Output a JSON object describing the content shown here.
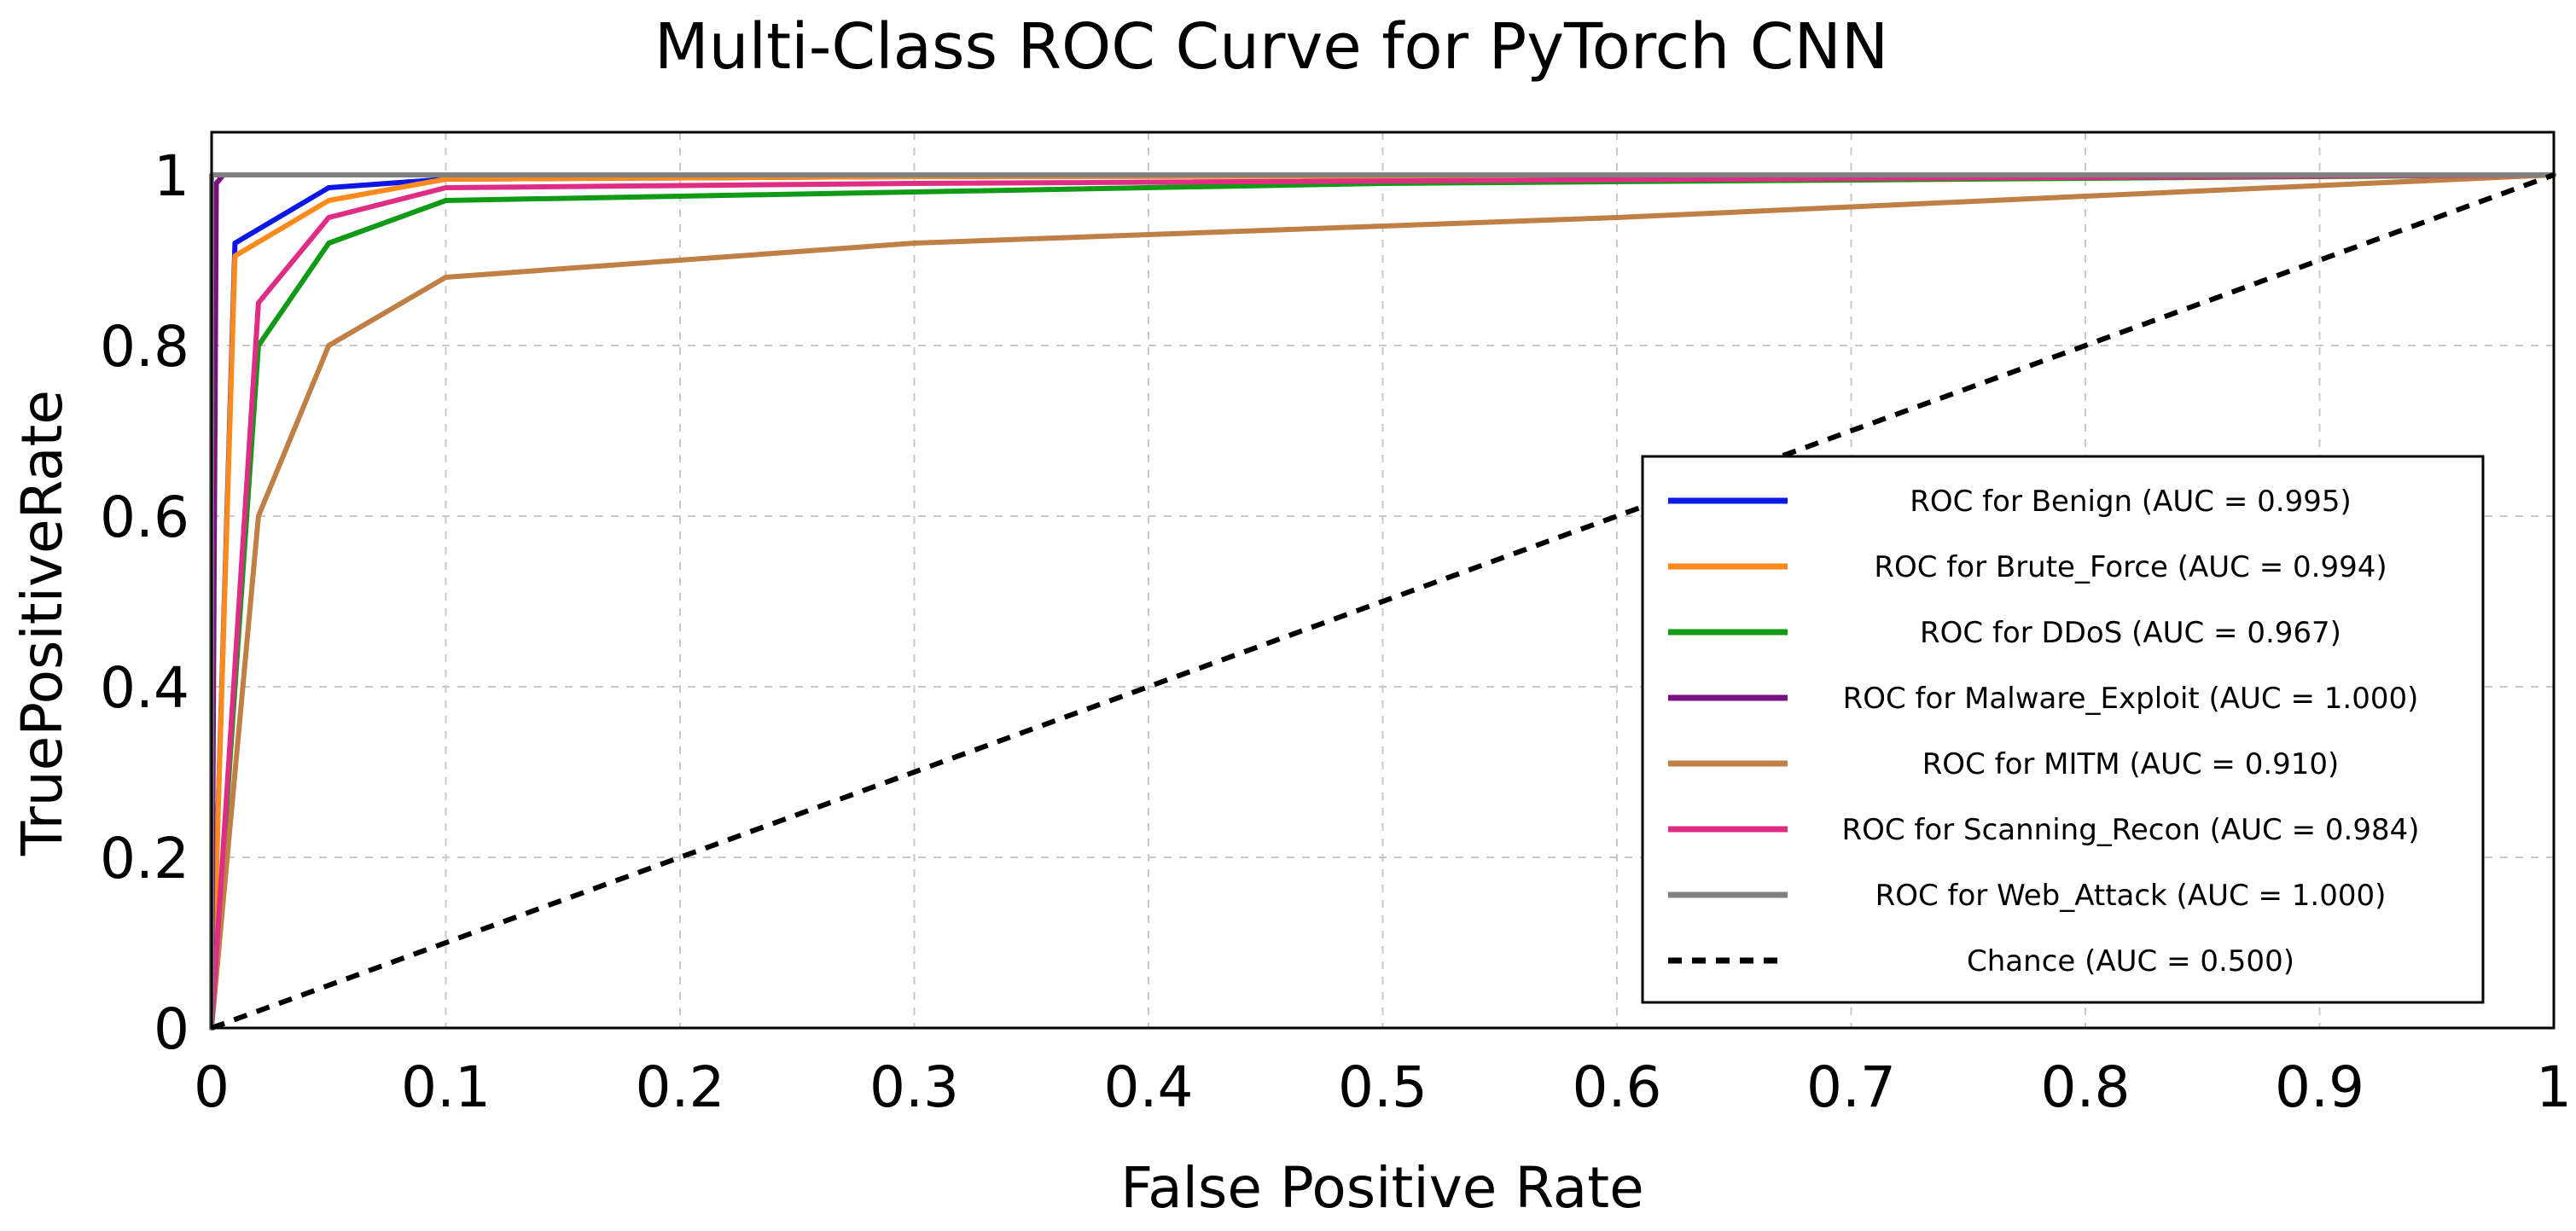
{
  "chart_data": {
    "type": "line",
    "title": "Multi-Class ROC Curve for PyTorch CNN",
    "xlabel": "False Positive Rate",
    "ylabel": "TruePositiveRate",
    "xlim": [
      0,
      1
    ],
    "ylim": [
      0,
      1.05
    ],
    "grid": true,
    "legend_position": "lower-right",
    "x_ticks": [
      "0",
      "0.1",
      "0.2",
      "0.3",
      "0.4",
      "0.5",
      "0.6",
      "0.7",
      "0.8",
      "0.9",
      "1"
    ],
    "y_ticks": [
      "0",
      "0.2",
      "0.4",
      "0.6",
      "0.8",
      "1"
    ],
    "series": [
      {
        "name": "ROC for Benign (AUC = 0.995)",
        "color": "#0a17e6",
        "dashed": false,
        "x": [
          0,
          0.01,
          0.05,
          0.1,
          0.3,
          1
        ],
        "y": [
          0,
          0.92,
          0.985,
          0.995,
          0.998,
          1
        ]
      },
      {
        "name": "ROC for Brute_Force (AUC = 0.994)",
        "color": "#ff8a1c",
        "dashed": false,
        "x": [
          0,
          0.01,
          0.05,
          0.1,
          0.3,
          1
        ],
        "y": [
          0,
          0.905,
          0.97,
          0.995,
          0.998,
          1
        ]
      },
      {
        "name": "ROC for DDoS (AUC = 0.967)",
        "color": "#109a15",
        "dashed": false,
        "x": [
          0,
          0.02,
          0.05,
          0.1,
          0.3,
          0.5,
          1
        ],
        "y": [
          0,
          0.8,
          0.92,
          0.97,
          0.98,
          0.99,
          1
        ]
      },
      {
        "name": "ROC for Malware_Exploit (AUC = 1.000)",
        "color": "#7a1180",
        "dashed": false,
        "x": [
          0,
          0.002,
          0.005,
          1
        ],
        "y": [
          0,
          0.99,
          1,
          1
        ]
      },
      {
        "name": "ROC for MITM (AUC = 0.910)",
        "color": "#c07f44",
        "dashed": false,
        "x": [
          0,
          0.02,
          0.05,
          0.1,
          0.3,
          0.6,
          1
        ],
        "y": [
          0,
          0.6,
          0.8,
          0.88,
          0.92,
          0.95,
          1
        ]
      },
      {
        "name": "ROC for Scanning_Recon (AUC = 0.984)",
        "color": "#df2d86",
        "dashed": false,
        "x": [
          0,
          0.02,
          0.05,
          0.1,
          0.3,
          1
        ],
        "y": [
          0,
          0.85,
          0.95,
          0.985,
          0.99,
          1
        ]
      },
      {
        "name": "ROC for Web_Attack (AUC = 1.000)",
        "color": "#808080",
        "dashed": false,
        "x": [
          0,
          0,
          1
        ],
        "y": [
          0,
          1,
          1
        ]
      },
      {
        "name": "Chance (AUC = 0.500)",
        "color": "#000000",
        "dashed": true,
        "x": [
          0,
          1
        ],
        "y": [
          0,
          1
        ]
      }
    ]
  }
}
